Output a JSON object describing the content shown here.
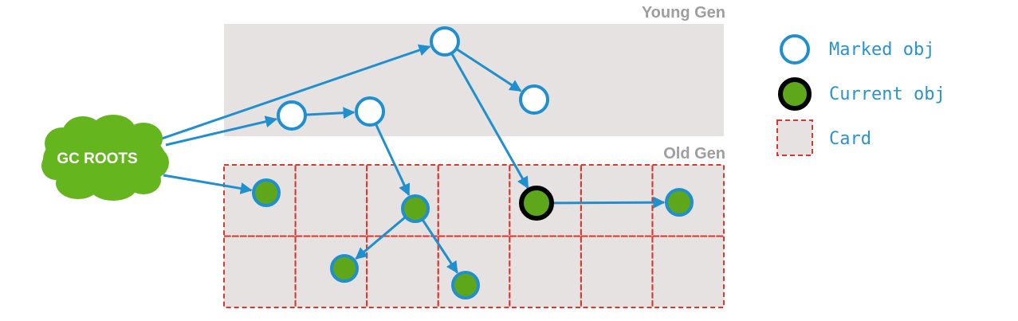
{
  "colors": {
    "region_fill": "#e5e2e1",
    "card_border": "#d63a2f",
    "arrow": "#1f8fcf",
    "marked_stroke": "#1f8fcf",
    "marked_fill": "#ffffff",
    "live_fill": "#5ea71b",
    "live_stroke": "#1f8fcf",
    "current_stroke": "#000000",
    "cloud_fill": "#64b51e",
    "label_gray": "#9e9e9e",
    "legend_text": "#2a93c9"
  },
  "regions": {
    "young_gen_label": "Young Gen",
    "old_gen_label": "Old Gen"
  },
  "gc_roots": {
    "label": "GC ROOTS",
    "icon": "cloud-shape"
  },
  "legend": {
    "marked": "Marked obj",
    "current": "Current obj",
    "card": "Card"
  },
  "graph": {
    "old_gen_card_grid": {
      "columns": 7,
      "rows": 2
    },
    "nodes": [
      {
        "id": "y1",
        "kind": "marked",
        "region": "young-gen"
      },
      {
        "id": "y2",
        "kind": "marked",
        "region": "young-gen"
      },
      {
        "id": "y3",
        "kind": "marked",
        "region": "young-gen"
      },
      {
        "id": "y4",
        "kind": "marked",
        "region": "young-gen"
      },
      {
        "id": "o1",
        "kind": "live",
        "region": "old-gen"
      },
      {
        "id": "o2",
        "kind": "live",
        "region": "old-gen"
      },
      {
        "id": "o3",
        "kind": "live",
        "region": "old-gen"
      },
      {
        "id": "o4",
        "kind": "live",
        "region": "old-gen"
      },
      {
        "id": "oc",
        "kind": "current",
        "region": "old-gen"
      },
      {
        "id": "o5",
        "kind": "live",
        "region": "old-gen"
      }
    ],
    "edges": [
      {
        "from": "roots",
        "to": "y1"
      },
      {
        "from": "roots",
        "to": "y3"
      },
      {
        "from": "roots",
        "to": "o1"
      },
      {
        "from": "y1",
        "to": "y2"
      },
      {
        "from": "y1",
        "to": "oc"
      },
      {
        "from": "y3",
        "to": "y4"
      },
      {
        "from": "y4",
        "to": "o2"
      },
      {
        "from": "o2",
        "to": "o3"
      },
      {
        "from": "o2",
        "to": "o4"
      },
      {
        "from": "oc",
        "to": "o5"
      }
    ]
  }
}
